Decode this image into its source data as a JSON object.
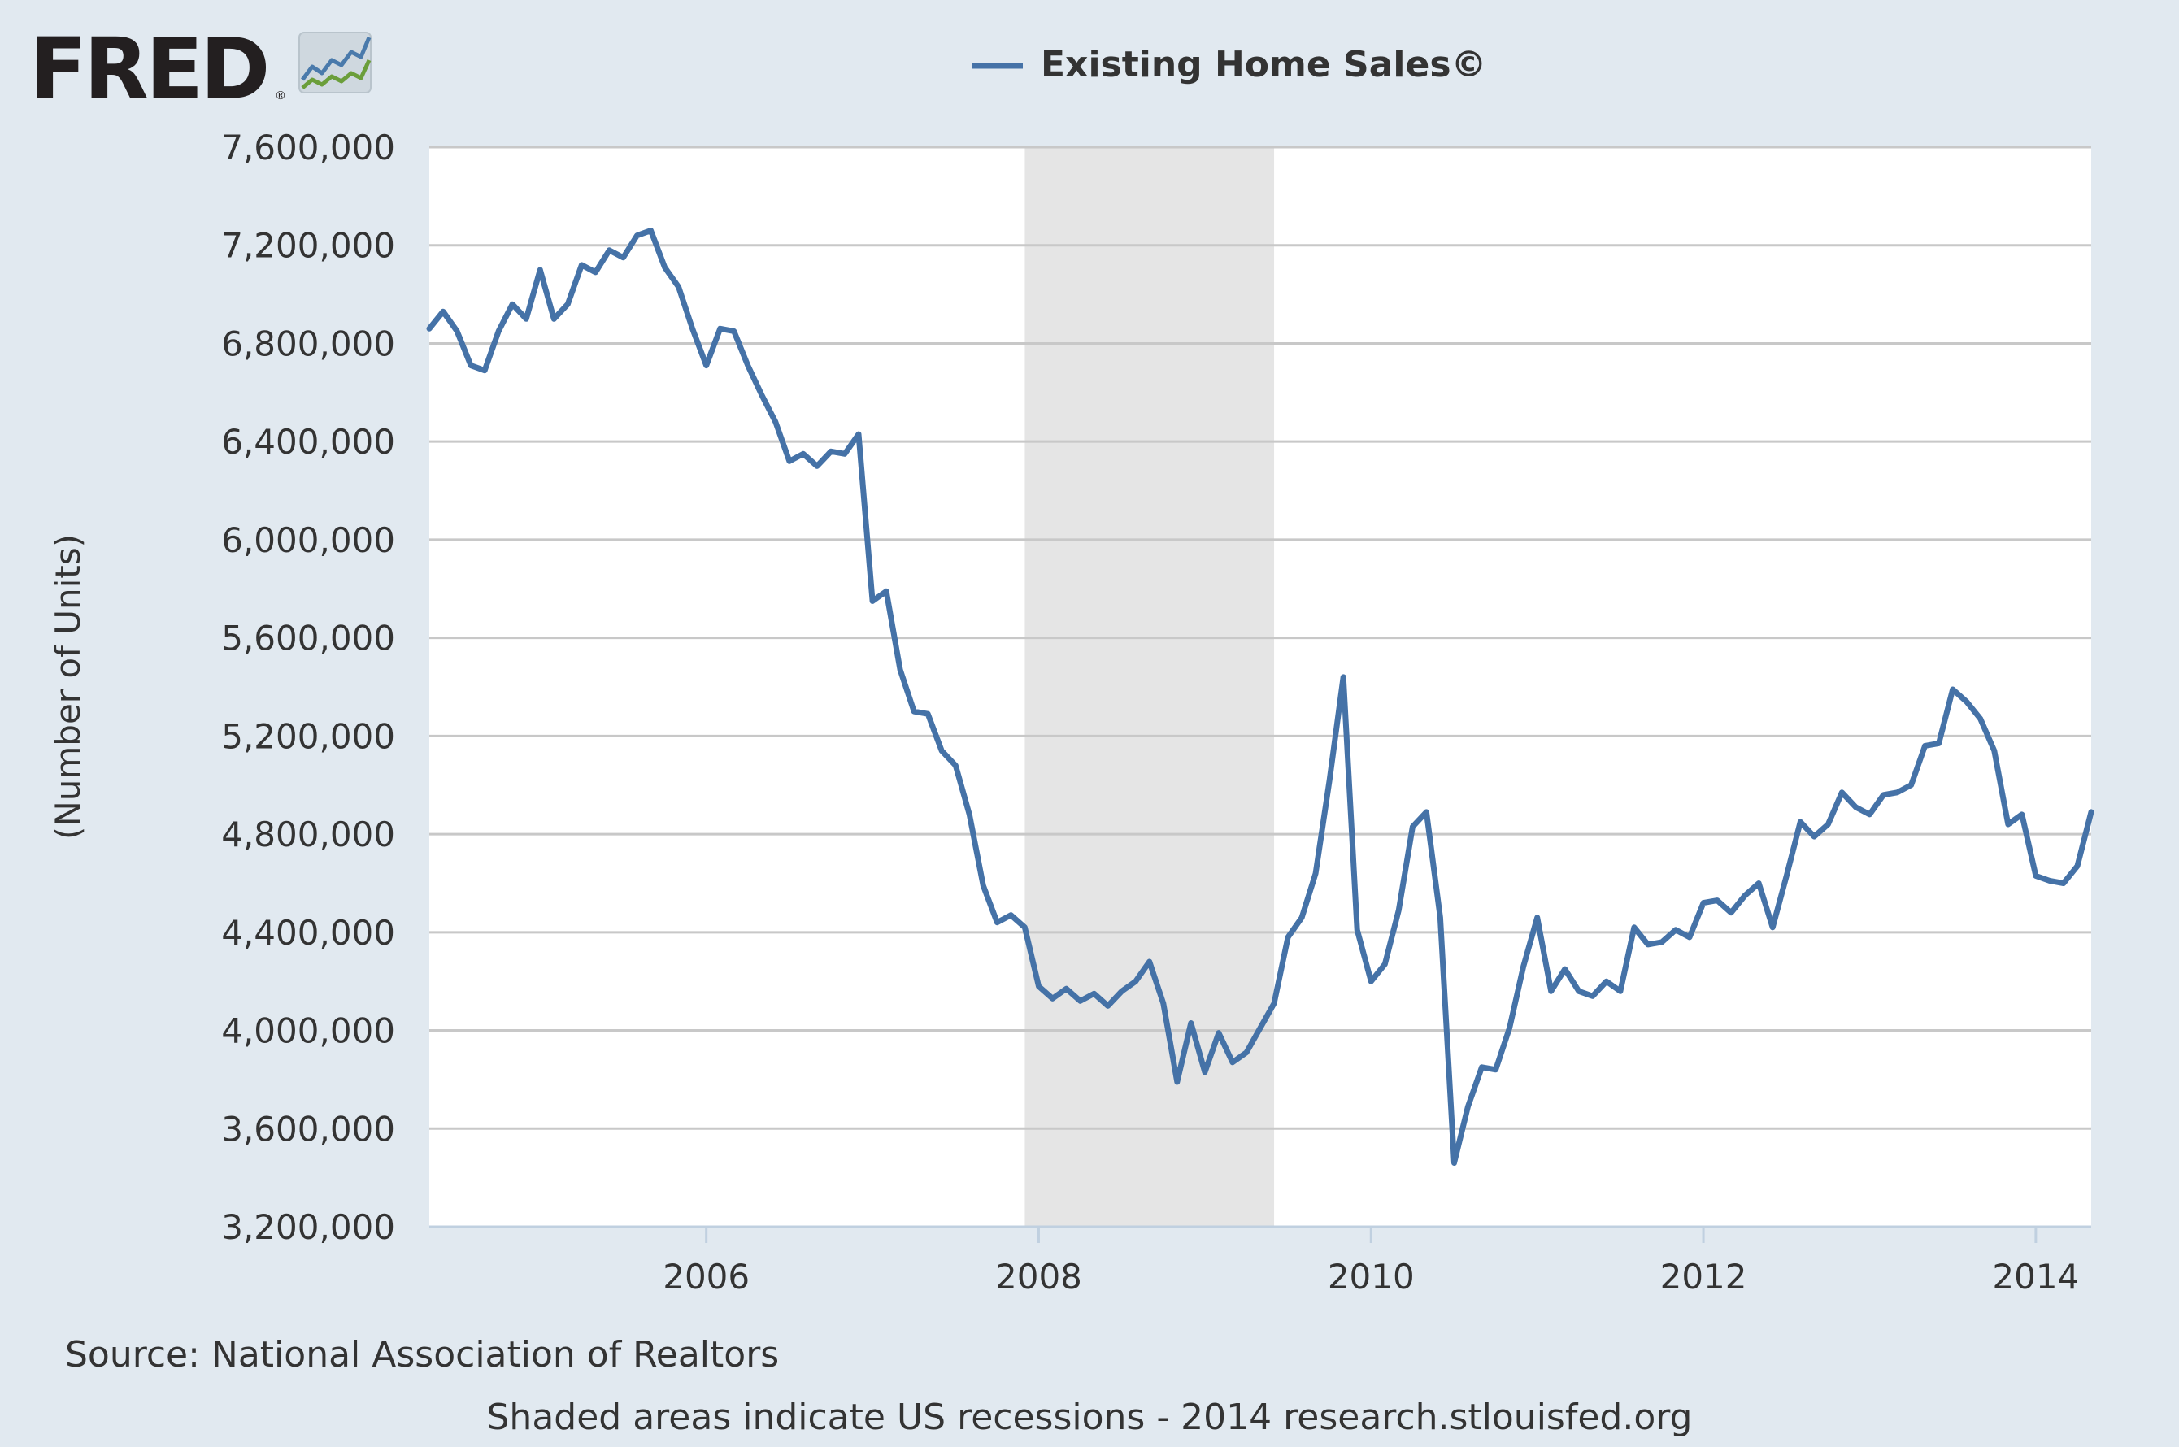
{
  "logo": {
    "text": "FRED",
    "registered": "®"
  },
  "colors": {
    "background": "#e1e9f0",
    "plot_background": "#ffffff",
    "series": "#4572a7",
    "recession_shade": "#e5e5e5",
    "gridline": "#c8c8c8",
    "text": "#333333",
    "logo_text": "#231f20",
    "logo_line_blue": "#4a7aab",
    "logo_line_green": "#6b9e3a"
  },
  "footer": {
    "source": "Source: National Association of Realtors",
    "note": "Shaded areas indicate US recessions - 2014 research.stlouisfed.org"
  },
  "chart_data": {
    "type": "line",
    "title": "Existing Home Sales©",
    "xlabel": "",
    "ylabel": "(Number of Units)",
    "legend": "top-center",
    "grid": true,
    "xlim": [
      "2004-05-01",
      "2014-05-01"
    ],
    "ylim": [
      3200000,
      7600000
    ],
    "yticks": [
      3200000,
      3600000,
      4000000,
      4400000,
      4800000,
      5200000,
      5600000,
      6000000,
      6400000,
      6800000,
      7200000,
      7600000
    ],
    "ytick_labels": [
      "3,200,000",
      "3,600,000",
      "4,000,000",
      "4,400,000",
      "4,800,000",
      "5,200,000",
      "5,600,000",
      "6,000,000",
      "6,400,000",
      "6,800,000",
      "7,200,000",
      "7,600,000"
    ],
    "xticks": [
      "2006-01-01",
      "2008-01-01",
      "2010-01-01",
      "2012-01-01",
      "2014-01-01"
    ],
    "xtick_labels": [
      "2006",
      "2008",
      "2010",
      "2012",
      "2014"
    ],
    "recessions": [
      {
        "start": "2007-12-01",
        "end": "2009-06-01"
      }
    ],
    "series": [
      {
        "name": "Existing Home Sales©",
        "start": "2004-05-01",
        "frequency": "monthly",
        "values": [
          6860000,
          6930000,
          6850000,
          6710000,
          6690000,
          6850000,
          6960000,
          6900000,
          7100000,
          6900000,
          6960000,
          7120000,
          7090000,
          7180000,
          7150000,
          7240000,
          7260000,
          7110000,
          7030000,
          6860000,
          6710000,
          6860000,
          6850000,
          6710000,
          6590000,
          6480000,
          6320000,
          6350000,
          6300000,
          6360000,
          6350000,
          6430000,
          5750000,
          5790000,
          5470000,
          5300000,
          5290000,
          5140000,
          5080000,
          4880000,
          4590000,
          4440000,
          4470000,
          4420000,
          4180000,
          4130000,
          4170000,
          4120000,
          4150000,
          4100000,
          4160000,
          4200000,
          4280000,
          4110000,
          3790000,
          4030000,
          3830000,
          3990000,
          3870000,
          3910000,
          4010000,
          4110000,
          4380000,
          4460000,
          4640000,
          5020000,
          5440000,
          4410000,
          4200000,
          4270000,
          4490000,
          4830000,
          4890000,
          4460000,
          3460000,
          3690000,
          3850000,
          3840000,
          4010000,
          4260000,
          4460000,
          4160000,
          4250000,
          4160000,
          4140000,
          4200000,
          4160000,
          4420000,
          4350000,
          4360000,
          4410000,
          4380000,
          4520000,
          4530000,
          4480000,
          4550000,
          4600000,
          4420000,
          4630000,
          4850000,
          4790000,
          4840000,
          4970000,
          4910000,
          4880000,
          4960000,
          4970000,
          5000000,
          5160000,
          5170000,
          5390000,
          5340000,
          5270000,
          5140000,
          4840000,
          4880000,
          4630000,
          4610000,
          4600000,
          4670000,
          4890000
        ]
      }
    ]
  }
}
